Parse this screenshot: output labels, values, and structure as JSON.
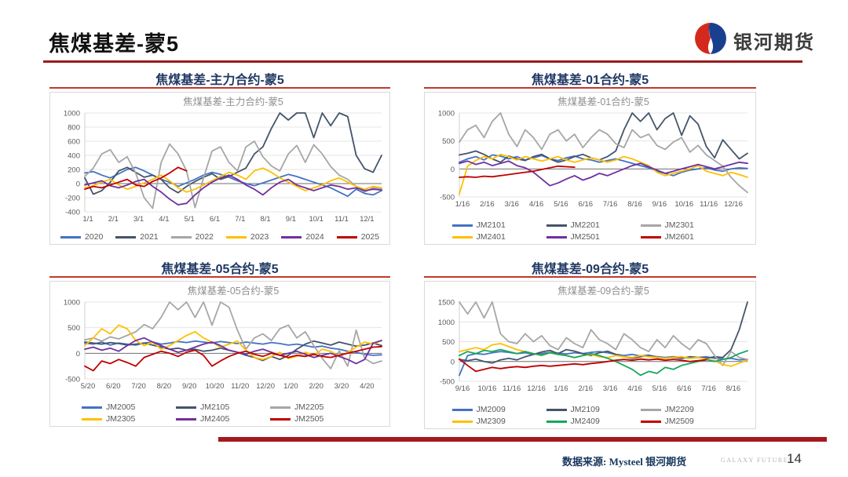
{
  "page": {
    "title": "焦煤基差-蒙5",
    "logo_text": "银河期货",
    "footer_source": "数据来源: Mysteel 银河期货",
    "footer_brand": "GALAXY FUTURES",
    "page_number": "14"
  },
  "colors": {
    "header_rule": "#9a1b1c",
    "panel_rule": "#c0392b",
    "panel_header_text": "#1f3864",
    "footer_bar": "#a31a1e",
    "logo_red": "#d42a1e",
    "logo_blue": "#1b3f8f"
  },
  "chart_data": [
    {
      "type": "line",
      "header": "焦煤基差-主力合约-蒙5",
      "title": "焦煤基差-主力合约-蒙5",
      "ylim": [
        -400,
        1000
      ],
      "yticks": [
        1000,
        800,
        600,
        400,
        200,
        0,
        -200,
        -400
      ],
      "x_labels": [
        "1/1",
        "2/1",
        "3/1",
        "4/1",
        "5/1",
        "6/1",
        "7/1",
        "8/1",
        "9/1",
        "10/1",
        "11/1",
        "12/1"
      ],
      "legend_rows": 1,
      "series": [
        {
          "name": "2020",
          "color": "#4472c4",
          "values": [
            150,
            170,
            120,
            80,
            140,
            200,
            230,
            180,
            120,
            60,
            20,
            -40,
            10,
            60,
            120,
            160,
            130,
            90,
            40,
            0,
            -30,
            10,
            50,
            90,
            130,
            100,
            60,
            20,
            -20,
            -60,
            -120,
            -180,
            -80,
            -140,
            -160,
            -100
          ]
        },
        {
          "name": "2021",
          "color": "#44546a",
          "values": [
            80,
            -150,
            -100,
            20,
            180,
            230,
            160,
            90,
            120,
            60,
            -60,
            -130,
            -40,
            30,
            90,
            140,
            60,
            100,
            160,
            220,
            420,
            520,
            780,
            1000,
            900,
            1000,
            1000,
            650,
            1000,
            820,
            1000,
            950,
            400,
            210,
            160,
            400
          ]
        },
        {
          "name": "2022",
          "color": "#a6a6a6",
          "values": [
            100,
            220,
            420,
            480,
            300,
            380,
            150,
            -200,
            -350,
            300,
            560,
            420,
            180,
            -340,
            80,
            460,
            520,
            300,
            180,
            520,
            600,
            380,
            250,
            180,
            420,
            540,
            300,
            550,
            420,
            240,
            120,
            60,
            -40,
            -120,
            -60,
            -80
          ]
        },
        {
          "name": "2023",
          "color": "#ffc000",
          "values": [
            -60,
            -30,
            20,
            60,
            -20,
            -80,
            -40,
            10,
            60,
            120,
            40,
            -60,
            -120,
            -80,
            -20,
            40,
            100,
            160,
            120,
            60,
            180,
            220,
            160,
            80,
            20,
            -40,
            -100,
            -60,
            -20,
            40,
            80,
            20,
            -40,
            -80,
            -40,
            -60
          ]
        },
        {
          "name": "2024",
          "color": "#7030a0",
          "values": [
            -20,
            10,
            40,
            -30,
            -60,
            -20,
            30,
            60,
            -40,
            -120,
            -220,
            -300,
            -280,
            -160,
            -60,
            20,
            80,
            120,
            60,
            -20,
            -80,
            -160,
            -60,
            20,
            60,
            -20,
            -60,
            -100,
            -60,
            -20,
            -40,
            -80,
            -60,
            -100,
            -80,
            -90
          ]
        },
        {
          "name": "2025",
          "color": "#c00000",
          "values": [
            -80,
            -40,
            -60,
            -20,
            20,
            60,
            -20,
            -40,
            30,
            80,
            150,
            230,
            180,
            null,
            null,
            null,
            null,
            null,
            null,
            null,
            null,
            null,
            null,
            null,
            null,
            null,
            null,
            null,
            null,
            null,
            null,
            null,
            null,
            null,
            null,
            null
          ]
        }
      ]
    },
    {
      "type": "line",
      "header": "焦煤基差-01合约-蒙5",
      "title": "焦煤基差-01合约-蒙5",
      "ylim": [
        -500,
        1000
      ],
      "yticks": [
        1000,
        500,
        0,
        -500
      ],
      "x_labels": [
        "1/16",
        "2/16",
        "3/16",
        "4/16",
        "5/16",
        "6/16",
        "7/16",
        "8/16",
        "9/16",
        "10/16",
        "11/16",
        "12/16"
      ],
      "legend_rows": 2,
      "series": [
        {
          "name": "JM2101",
          "color": "#4472c4",
          "values": [
            120,
            180,
            220,
            160,
            250,
            230,
            180,
            220,
            160,
            200,
            240,
            180,
            150,
            200,
            230,
            180,
            160,
            120,
            150,
            180,
            140,
            100,
            60,
            20,
            -40,
            -80,
            -120,
            -60,
            -20,
            0,
            20,
            -20,
            -40,
            0,
            20,
            10
          ]
        },
        {
          "name": "JM2201",
          "color": "#44546a",
          "values": [
            250,
            280,
            320,
            260,
            180,
            120,
            230,
            180,
            150,
            220,
            260,
            180,
            120,
            160,
            220,
            260,
            200,
            160,
            220,
            320,
            700,
            1000,
            850,
            1000,
            700,
            900,
            1000,
            600,
            950,
            800,
            400,
            200,
            520,
            350,
            180,
            280
          ]
        },
        {
          "name": "JM2301",
          "color": "#a6a6a6",
          "values": [
            480,
            700,
            780,
            560,
            850,
            1000,
            620,
            400,
            700,
            560,
            350,
            620,
            700,
            500,
            620,
            380,
            560,
            700,
            620,
            450,
            380,
            700,
            560,
            620,
            420,
            350,
            480,
            560,
            300,
            420,
            250,
            150,
            50,
            -150,
            -300,
            -420
          ]
        },
        {
          "name": "JM2401",
          "color": "#ffc000",
          "values": [
            -450,
            50,
            150,
            220,
            180,
            260,
            220,
            160,
            220,
            180,
            140,
            180,
            220,
            160,
            120,
            160,
            200,
            160,
            120,
            160,
            220,
            180,
            120,
            60,
            -60,
            -120,
            -80,
            -40,
            0,
            60,
            -40,
            -80,
            -120,
            -60,
            -100,
            -150
          ]
        },
        {
          "name": "JM2501",
          "color": "#7030a0",
          "values": [
            100,
            140,
            80,
            120,
            60,
            100,
            140,
            60,
            20,
            -60,
            -180,
            -300,
            -250,
            -180,
            -120,
            -200,
            -150,
            -80,
            -120,
            -60,
            0,
            60,
            100,
            40,
            -20,
            -80,
            -40,
            0,
            40,
            80,
            40,
            0,
            40,
            80,
            120,
            100
          ]
        },
        {
          "name": "JM2601",
          "color": "#c00000",
          "values": [
            -150,
            -140,
            -150,
            -130,
            -140,
            -120,
            -100,
            -80,
            -60,
            -40,
            -10,
            20,
            50,
            40,
            30,
            null,
            null,
            null,
            null,
            null,
            null,
            null,
            null,
            null,
            null,
            null,
            null,
            null,
            null,
            null,
            null,
            null,
            null,
            null,
            null,
            null
          ]
        }
      ]
    },
    {
      "type": "line",
      "header": "焦煤基差-05合约-蒙5",
      "title": "焦煤基差-05合约-蒙5",
      "ylim": [
        -500,
        1000
      ],
      "yticks": [
        1000,
        500,
        0,
        -500
      ],
      "x_labels": [
        "5/20",
        "6/20",
        "7/20",
        "8/20",
        "9/20",
        "10/20",
        "11/20",
        "12/20",
        "1/20",
        "2/20",
        "3/20",
        "4/20"
      ],
      "legend_rows": 2,
      "series": [
        {
          "name": "JM2005",
          "color": "#4472c4",
          "values": [
            200,
            180,
            220,
            160,
            200,
            180,
            160,
            200,
            220,
            180,
            200,
            230,
            210,
            240,
            220,
            200,
            230,
            210,
            190,
            220,
            200,
            180,
            210,
            190,
            160,
            180,
            150,
            120,
            140,
            100,
            80,
            40,
            20,
            -20,
            -40,
            -30
          ]
        },
        {
          "name": "JM2105",
          "color": "#44546a",
          "values": [
            220,
            200,
            180,
            210,
            190,
            160,
            180,
            200,
            160,
            120,
            80,
            100,
            60,
            80,
            40,
            60,
            100,
            60,
            20,
            -40,
            -80,
            -140,
            -60,
            -120,
            -40,
            80,
            180,
            240,
            200,
            160,
            220,
            180,
            140,
            160,
            200,
            150
          ]
        },
        {
          "name": "JM2205",
          "color": "#a6a6a6",
          "values": [
            260,
            300,
            240,
            320,
            280,
            350,
            420,
            560,
            480,
            700,
            1000,
            850,
            1000,
            700,
            1000,
            550,
            1000,
            900,
            450,
            80,
            300,
            380,
            250,
            480,
            550,
            300,
            420,
            150,
            -100,
            -300,
            50,
            -250,
            450,
            -100,
            -200,
            -150
          ]
        },
        {
          "name": "JM2305",
          "color": "#ffc000",
          "values": [
            150,
            300,
            480,
            380,
            550,
            480,
            250,
            150,
            220,
            80,
            150,
            250,
            350,
            420,
            300,
            220,
            120,
            180,
            240,
            60,
            -80,
            -120,
            -60,
            20,
            -100,
            -60,
            20,
            -40,
            80,
            40,
            -60,
            20,
            120,
            220,
            180,
            250
          ]
        },
        {
          "name": "JM2405",
          "color": "#7030a0",
          "values": [
            80,
            120,
            60,
            100,
            40,
            150,
            250,
            300,
            220,
            150,
            80,
            20,
            60,
            120,
            180,
            220,
            150,
            60,
            20,
            -20,
            40,
            80,
            20,
            -40,
            0,
            40,
            -20,
            -80,
            -40,
            0,
            -60,
            -120,
            -200,
            -120,
            200,
            250
          ]
        },
        {
          "name": "JM2505",
          "color": "#c00000",
          "values": [
            -250,
            -340,
            -150,
            -200,
            -120,
            -180,
            -250,
            -80,
            -20,
            40,
            0,
            -60,
            20,
            60,
            -40,
            -250,
            -150,
            -60,
            0,
            40,
            -20,
            -60,
            0,
            -40,
            -80,
            -40,
            -60,
            -20,
            -60,
            -80,
            -40,
            0,
            40,
            80,
            120,
            130
          ]
        }
      ]
    },
    {
      "type": "line",
      "header": "焦煤基差-09合约-蒙5",
      "title": "焦煤基差-09合约-蒙5",
      "ylim": [
        -500,
        1500
      ],
      "yticks": [
        1500,
        1000,
        500,
        0,
        -500
      ],
      "x_labels": [
        "9/16",
        "10/16",
        "11/16",
        "12/16",
        "1/16",
        "2/16",
        "3/16",
        "4/16",
        "5/16",
        "6/16",
        "7/16",
        "8/16"
      ],
      "legend_rows": 2,
      "series": [
        {
          "name": "JM2009",
          "color": "#4472c4",
          "values": [
            -350,
            150,
            200,
            180,
            220,
            250,
            230,
            200,
            220,
            180,
            200,
            230,
            210,
            190,
            220,
            200,
            230,
            250,
            220,
            180,
            150,
            180,
            140,
            160,
            120,
            100,
            120,
            100,
            80,
            100,
            120,
            80,
            60,
            80,
            40,
            50
          ]
        },
        {
          "name": "JM2109",
          "color": "#44546a",
          "values": [
            50,
            20,
            60,
            0,
            -40,
            40,
            80,
            40,
            120,
            180,
            240,
            280,
            200,
            300,
            260,
            200,
            150,
            220,
            260,
            180,
            120,
            80,
            120,
            150,
            100,
            80,
            100,
            80,
            120,
            100,
            80,
            120,
            100,
            300,
            800,
            1500
          ]
        },
        {
          "name": "JM2209",
          "color": "#a6a6a6",
          "values": [
            1500,
            1200,
            1500,
            1100,
            1500,
            700,
            500,
            450,
            700,
            500,
            650,
            400,
            300,
            600,
            450,
            350,
            800,
            550,
            450,
            300,
            700,
            550,
            350,
            250,
            550,
            350,
            650,
            450,
            300,
            550,
            450,
            150,
            -100,
            250,
            100,
            50
          ]
        },
        {
          "name": "JM2309",
          "color": "#ffc000",
          "values": [
            250,
            300,
            350,
            300,
            420,
            450,
            380,
            300,
            250,
            200,
            150,
            220,
            180,
            150,
            100,
            150,
            180,
            120,
            100,
            150,
            120,
            100,
            150,
            120,
            100,
            80,
            100,
            120,
            80,
            100,
            60,
            20,
            -80,
            -120,
            -40,
            30
          ]
        },
        {
          "name": "JM2409",
          "color": "#16a75c",
          "values": [
            150,
            250,
            200,
            280,
            250,
            300,
            250,
            200,
            250,
            200,
            160,
            220,
            180,
            150,
            100,
            150,
            200,
            150,
            80,
            0,
            -100,
            -200,
            -350,
            -250,
            -300,
            -150,
            -200,
            -100,
            -50,
            0,
            50,
            0,
            50,
            100,
            200,
            270
          ]
        },
        {
          "name": "JM2509",
          "color": "#c00000",
          "values": [
            60,
            -100,
            -250,
            -200,
            -150,
            -180,
            -150,
            -130,
            -150,
            -120,
            -100,
            -120,
            -100,
            -80,
            -60,
            -80,
            -50,
            -30,
            0,
            30,
            50,
            30,
            60,
            40,
            60,
            30,
            50,
            30,
            0,
            20,
            40,
            null,
            null,
            null,
            null,
            null
          ]
        }
      ]
    }
  ]
}
